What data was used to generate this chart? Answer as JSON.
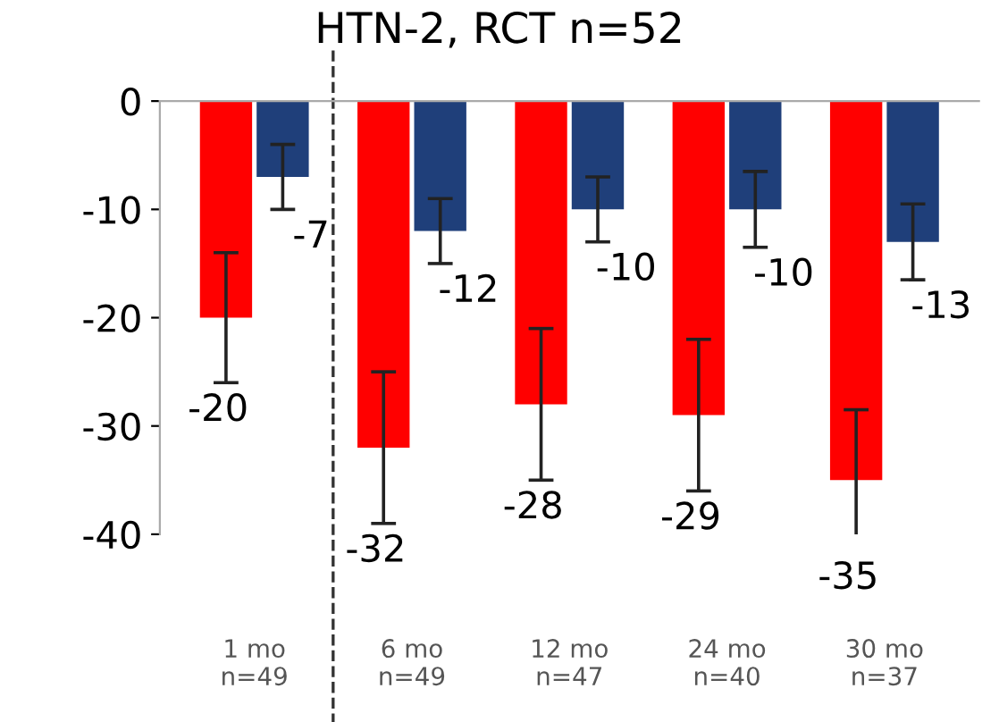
{
  "chart_data": {
    "type": "bar",
    "title": "HTN-2, RCT n=52",
    "categories": [
      "1 mo\nn=49",
      "6 mo\nn=49",
      "12 mo\nn=47",
      "24 mo\nn=40",
      "30 mo\nn=37"
    ],
    "series": [
      {
        "color": "#ff0000",
        "values": [
          -20,
          -32,
          -28,
          -29,
          -35
        ],
        "errors": [
          6,
          7,
          7,
          7,
          6.5
        ]
      },
      {
        "color": "#1f3f7a",
        "values": [
          -7,
          -12,
          -10,
          -10,
          -13
        ],
        "errors": [
          3,
          3,
          3,
          3.5,
          3.5
        ]
      }
    ],
    "ylim": [
      -40,
      0
    ],
    "yticks": [
      -40,
      -30,
      -20,
      -10,
      0
    ],
    "data_labels": true,
    "grid": false,
    "legend": false
  }
}
